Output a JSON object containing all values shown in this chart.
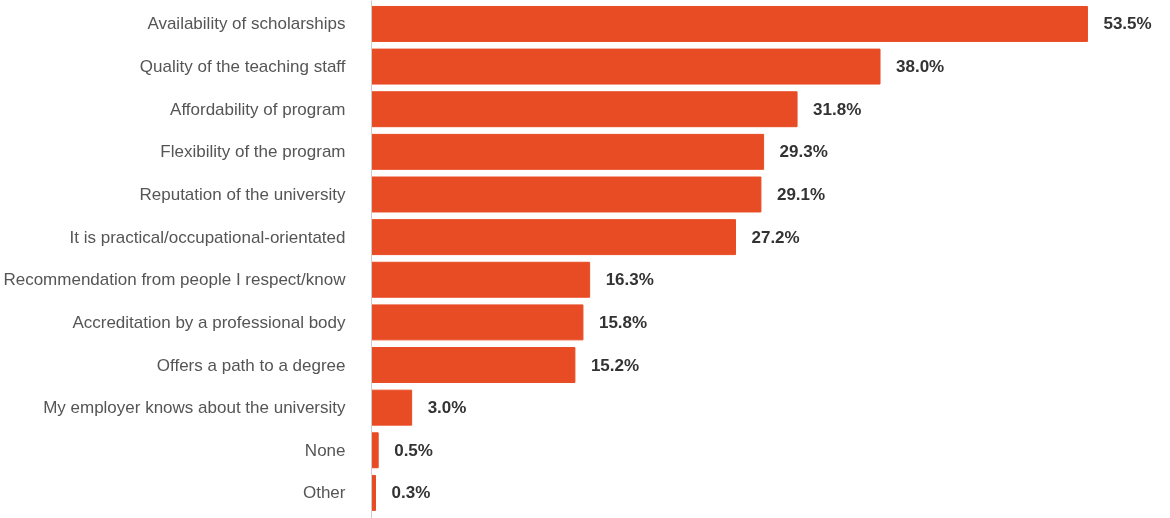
{
  "chart_data": {
    "type": "bar",
    "orientation": "horizontal",
    "color": "#e84c25",
    "categories": [
      "Availability of scholarships",
      "Quality of the teaching staff",
      "Affordability of program",
      "Flexibility of the program",
      "Reputation of the university",
      "It is practical/occupational-orientated",
      "Recommendation from people I respect/know",
      "Accreditation by a professional body",
      "Offers a path to a degree",
      "My employer knows about the university",
      "None",
      "Other"
    ],
    "values": [
      53.5,
      38.0,
      31.8,
      29.3,
      29.1,
      27.2,
      16.3,
      15.8,
      15.2,
      3.0,
      0.5,
      0.3
    ],
    "value_labels": [
      "53.5%",
      "38.0%",
      "31.8%",
      "29.3%",
      "29.1%",
      "27.2%",
      "16.3%",
      "15.8%",
      "15.2%",
      "3.0%",
      "0.5%",
      "0.3%"
    ],
    "grid": false,
    "tick_labels": "y"
  }
}
